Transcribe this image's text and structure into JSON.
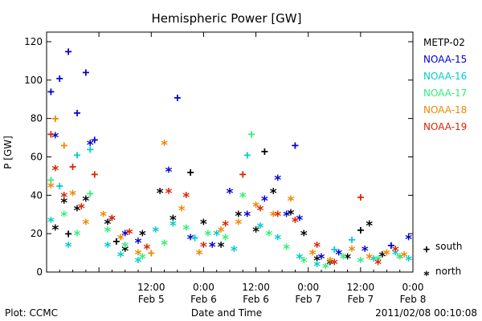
{
  "chart_data": {
    "type": "scatter",
    "title": "Hemispheric Power [GW]",
    "xlabel": "Date and Time",
    "ylabel": "P [GW]",
    "xlim": [
      "2011-02-04T12:00",
      "2011-02-08T00:00"
    ],
    "ylim": [
      0,
      125
    ],
    "y_ticks": [
      0,
      20,
      40,
      60,
      80,
      100,
      120
    ],
    "x_ticks": [
      {
        "t": "2011-02-05T00:00",
        "time": "",
        "date": ""
      },
      {
        "t": "2011-02-05T12:00",
        "time": "12:00",
        "date": "Feb 5"
      },
      {
        "t": "2011-02-06T00:00",
        "time": "0:00",
        "date": "Feb 6"
      },
      {
        "t": "2011-02-06T12:00",
        "time": "12:00",
        "date": "Feb 6"
      },
      {
        "t": "2011-02-07T00:00",
        "time": "0:00",
        "date": "Feb 7"
      },
      {
        "t": "2011-02-07T12:00",
        "time": "12:00",
        "date": "Feb 7"
      },
      {
        "t": "2011-02-08T00:00",
        "time": "0:00",
        "date": "Feb 8"
      }
    ],
    "grid": false,
    "legend_position": "right",
    "marker_legend": [
      {
        "symbol": "+",
        "label": "south"
      },
      {
        "symbol": "*",
        "label": "north"
      }
    ],
    "series": [
      {
        "name": "METP-02",
        "color": "#000000",
        "points": [
          {
            "t": "2011-02-04T14:00",
            "y": 23,
            "m": "*"
          },
          {
            "t": "2011-02-04T16:00",
            "y": 37,
            "m": "*"
          },
          {
            "t": "2011-02-04T17:00",
            "y": 20,
            "m": "+"
          },
          {
            "t": "2011-02-04T19:00",
            "y": 33,
            "m": "*"
          },
          {
            "t": "2011-02-04T21:00",
            "y": 38,
            "m": "*"
          },
          {
            "t": "2011-02-05T02:00",
            "y": 26,
            "m": "*"
          },
          {
            "t": "2011-02-05T04:00",
            "y": 16,
            "m": "+"
          },
          {
            "t": "2011-02-05T06:00",
            "y": 12,
            "m": "*"
          },
          {
            "t": "2011-02-05T10:00",
            "y": 20,
            "m": "*"
          },
          {
            "t": "2011-02-05T14:00",
            "y": 42,
            "m": "*"
          },
          {
            "t": "2011-02-05T17:00",
            "y": 28,
            "m": "*"
          },
          {
            "t": "2011-02-05T21:00",
            "y": 52,
            "m": "+"
          },
          {
            "t": "2011-02-06T00:00",
            "y": 26,
            "m": "*"
          },
          {
            "t": "2011-02-06T04:00",
            "y": 14,
            "m": "*"
          },
          {
            "t": "2011-02-06T08:00",
            "y": 30,
            "m": "*"
          },
          {
            "t": "2011-02-06T12:00",
            "y": 22,
            "m": "*"
          },
          {
            "t": "2011-02-06T14:00",
            "y": 63,
            "m": "+"
          },
          {
            "t": "2011-02-06T16:00",
            "y": 42,
            "m": "*"
          },
          {
            "t": "2011-02-06T20:00",
            "y": 31,
            "m": "*"
          },
          {
            "t": "2011-02-06T23:00",
            "y": 20,
            "m": "*"
          },
          {
            "t": "2011-02-07T02:00",
            "y": 7,
            "m": "*"
          },
          {
            "t": "2011-02-07T05:00",
            "y": 5,
            "m": "*"
          },
          {
            "t": "2011-02-07T09:00",
            "y": 8,
            "m": "*"
          },
          {
            "t": "2011-02-07T12:00",
            "y": 22,
            "m": "+"
          },
          {
            "t": "2011-02-07T14:00",
            "y": 25,
            "m": "*"
          },
          {
            "t": "2011-02-07T17:00",
            "y": 9,
            "m": "*"
          },
          {
            "t": "2011-02-07T21:00",
            "y": 8,
            "m": "*"
          }
        ]
      },
      {
        "name": "NOAA-15",
        "color": "#0000cc",
        "points": [
          {
            "t": "2011-02-04T13:00",
            "y": 94,
            "m": "+"
          },
          {
            "t": "2011-02-04T14:00",
            "y": 71,
            "m": "*"
          },
          {
            "t": "2011-02-04T15:00",
            "y": 101,
            "m": "+"
          },
          {
            "t": "2011-02-04T17:00",
            "y": 115,
            "m": "+"
          },
          {
            "t": "2011-02-04T19:00",
            "y": 83,
            "m": "+"
          },
          {
            "t": "2011-02-04T21:00",
            "y": 104,
            "m": "+"
          },
          {
            "t": "2011-02-04T22:00",
            "y": 67,
            "m": "*"
          },
          {
            "t": "2011-02-04T23:00",
            "y": 69,
            "m": "+"
          },
          {
            "t": "2011-02-05T03:00",
            "y": 28,
            "m": "*"
          },
          {
            "t": "2011-02-05T06:00",
            "y": 20,
            "m": "*"
          },
          {
            "t": "2011-02-05T09:00",
            "y": 16,
            "m": "*"
          },
          {
            "t": "2011-02-05T16:00",
            "y": 53,
            "m": "*"
          },
          {
            "t": "2011-02-05T18:00",
            "y": 91,
            "m": "+"
          },
          {
            "t": "2011-02-05T21:00",
            "y": 18,
            "m": "*"
          },
          {
            "t": "2011-02-06T02:00",
            "y": 14,
            "m": "*"
          },
          {
            "t": "2011-02-06T06:00",
            "y": 42,
            "m": "*"
          },
          {
            "t": "2011-02-06T10:00",
            "y": 30,
            "m": "*"
          },
          {
            "t": "2011-02-06T14:00",
            "y": 38,
            "m": "*"
          },
          {
            "t": "2011-02-06T17:00",
            "y": 49,
            "m": "*"
          },
          {
            "t": "2011-02-06T19:00",
            "y": 30,
            "m": "*"
          },
          {
            "t": "2011-02-06T21:00",
            "y": 66,
            "m": "+"
          },
          {
            "t": "2011-02-06T22:00",
            "y": 28,
            "m": "*"
          },
          {
            "t": "2011-02-07T03:00",
            "y": 8,
            "m": "*"
          },
          {
            "t": "2011-02-07T07:00",
            "y": 10,
            "m": "*"
          },
          {
            "t": "2011-02-07T13:00",
            "y": 12,
            "m": "*"
          },
          {
            "t": "2011-02-07T19:00",
            "y": 14,
            "m": "+"
          },
          {
            "t": "2011-02-07T23:00",
            "y": 18,
            "m": "*"
          }
        ]
      },
      {
        "name": "NOAA-16",
        "color": "#00cccc",
        "points": [
          {
            "t": "2011-02-04T13:00",
            "y": 27,
            "m": "*"
          },
          {
            "t": "2011-02-04T15:00",
            "y": 45,
            "m": "+"
          },
          {
            "t": "2011-02-04T17:00",
            "y": 14,
            "m": "*"
          },
          {
            "t": "2011-02-04T19:00",
            "y": 61,
            "m": "+"
          },
          {
            "t": "2011-02-04T22:00",
            "y": 64,
            "m": "+"
          },
          {
            "t": "2011-02-05T02:00",
            "y": 14,
            "m": "*"
          },
          {
            "t": "2011-02-05T05:00",
            "y": 9,
            "m": "*"
          },
          {
            "t": "2011-02-05T09:00",
            "y": 6,
            "m": "*"
          },
          {
            "t": "2011-02-05T13:00",
            "y": 22,
            "m": "*"
          },
          {
            "t": "2011-02-05T17:00",
            "y": 25,
            "m": "*"
          },
          {
            "t": "2011-02-05T22:00",
            "y": 18,
            "m": "+"
          },
          {
            "t": "2011-02-06T03:00",
            "y": 20,
            "m": "*"
          },
          {
            "t": "2011-02-06T07:00",
            "y": 12,
            "m": "*"
          },
          {
            "t": "2011-02-06T10:00",
            "y": 61,
            "m": "+"
          },
          {
            "t": "2011-02-06T13:00",
            "y": 24,
            "m": "*"
          },
          {
            "t": "2011-02-06T17:00",
            "y": 18,
            "m": "*"
          },
          {
            "t": "2011-02-06T22:00",
            "y": 8,
            "m": "*"
          },
          {
            "t": "2011-02-07T02:00",
            "y": 4,
            "m": "*"
          },
          {
            "t": "2011-02-07T06:00",
            "y": 12,
            "m": "+"
          },
          {
            "t": "2011-02-07T10:00",
            "y": 17,
            "m": "+"
          },
          {
            "t": "2011-02-07T15:00",
            "y": 7,
            "m": "*"
          },
          {
            "t": "2011-02-07T20:00",
            "y": 10,
            "m": "*"
          },
          {
            "t": "2011-02-07T23:00",
            "y": 7,
            "m": "*"
          }
        ]
      },
      {
        "name": "NOAA-17",
        "color": "#33ee77",
        "points": [
          {
            "t": "2011-02-04T13:00",
            "y": 48,
            "m": "+"
          },
          {
            "t": "2011-02-04T16:00",
            "y": 30,
            "m": "*"
          },
          {
            "t": "2011-02-04T19:00",
            "y": 20,
            "m": "*"
          },
          {
            "t": "2011-02-04T22:00",
            "y": 41,
            "m": "+"
          },
          {
            "t": "2011-02-05T02:00",
            "y": 22,
            "m": "*"
          },
          {
            "t": "2011-02-05T06:00",
            "y": 14,
            "m": "*"
          },
          {
            "t": "2011-02-05T10:00",
            "y": 8,
            "m": "*"
          },
          {
            "t": "2011-02-05T15:00",
            "y": 15,
            "m": "*"
          },
          {
            "t": "2011-02-05T20:00",
            "y": 23,
            "m": "*"
          },
          {
            "t": "2011-02-06T01:00",
            "y": 20,
            "m": "*"
          },
          {
            "t": "2011-02-06T05:00",
            "y": 18,
            "m": "*"
          },
          {
            "t": "2011-02-06T09:00",
            "y": 40,
            "m": "*"
          },
          {
            "t": "2011-02-06T11:00",
            "y": 72,
            "m": "+"
          },
          {
            "t": "2011-02-06T15:00",
            "y": 20,
            "m": "*"
          },
          {
            "t": "2011-02-06T19:00",
            "y": 13,
            "m": "*"
          },
          {
            "t": "2011-02-06T23:00",
            "y": 6,
            "m": "*"
          },
          {
            "t": "2011-02-07T04:00",
            "y": 3,
            "m": "*"
          },
          {
            "t": "2011-02-07T08:00",
            "y": 8,
            "m": "*"
          },
          {
            "t": "2011-02-07T12:00",
            "y": 6,
            "m": "*"
          },
          {
            "t": "2011-02-07T16:00",
            "y": 7,
            "m": "*"
          },
          {
            "t": "2011-02-07T21:00",
            "y": 8,
            "m": "*"
          }
        ]
      },
      {
        "name": "NOAA-18",
        "color": "#ee8800",
        "points": [
          {
            "t": "2011-02-04T13:00",
            "y": 45,
            "m": "*"
          },
          {
            "t": "2011-02-04T14:00",
            "y": 80,
            "m": "+"
          },
          {
            "t": "2011-02-04T16:00",
            "y": 66,
            "m": "+"
          },
          {
            "t": "2011-02-04T18:00",
            "y": 41,
            "m": "*"
          },
          {
            "t": "2011-02-04T21:00",
            "y": 26,
            "m": "*"
          },
          {
            "t": "2011-02-05T01:00",
            "y": 30,
            "m": "*"
          },
          {
            "t": "2011-02-05T05:00",
            "y": 18,
            "m": "*"
          },
          {
            "t": "2011-02-05T09:00",
            "y": 10,
            "m": "*"
          },
          {
            "t": "2011-02-05T12:00",
            "y": 10,
            "m": "+"
          },
          {
            "t": "2011-02-05T15:00",
            "y": 67,
            "m": "*"
          },
          {
            "t": "2011-02-05T19:00",
            "y": 33,
            "m": "*"
          },
          {
            "t": "2011-02-05T23:00",
            "y": 10,
            "m": "*"
          },
          {
            "t": "2011-02-06T04:00",
            "y": 22,
            "m": "*"
          },
          {
            "t": "2011-02-06T08:00",
            "y": 26,
            "m": "*"
          },
          {
            "t": "2011-02-06T12:00",
            "y": 35,
            "m": "*"
          },
          {
            "t": "2011-02-06T16:00",
            "y": 30,
            "m": "*"
          },
          {
            "t": "2011-02-06T20:00",
            "y": 38,
            "m": "*"
          },
          {
            "t": "2011-02-07T01:00",
            "y": 10,
            "m": "*"
          },
          {
            "t": "2011-02-07T05:00",
            "y": 6,
            "m": "*"
          },
          {
            "t": "2011-02-07T10:00",
            "y": 12,
            "m": "*"
          },
          {
            "t": "2011-02-07T14:00",
            "y": 8,
            "m": "*"
          },
          {
            "t": "2011-02-07T18:00",
            "y": 10,
            "m": "*"
          },
          {
            "t": "2011-02-07T22:00",
            "y": 9,
            "m": "*"
          }
        ]
      },
      {
        "name": "NOAA-19",
        "color": "#dd2200",
        "points": [
          {
            "t": "2011-02-04T13:00",
            "y": 72,
            "m": "+"
          },
          {
            "t": "2011-02-04T14:00",
            "y": 54,
            "m": "*"
          },
          {
            "t": "2011-02-04T16:00",
            "y": 40,
            "m": "*"
          },
          {
            "t": "2011-02-04T18:00",
            "y": 55,
            "m": "+"
          },
          {
            "t": "2011-02-04T20:00",
            "y": 34,
            "m": "*"
          },
          {
            "t": "2011-02-04T23:00",
            "y": 51,
            "m": "+"
          },
          {
            "t": "2011-02-05T03:00",
            "y": 28,
            "m": "*"
          },
          {
            "t": "2011-02-05T07:00",
            "y": 21,
            "m": "*"
          },
          {
            "t": "2011-02-05T11:00",
            "y": 13,
            "m": "*"
          },
          {
            "t": "2011-02-05T16:00",
            "y": 42,
            "m": "*"
          },
          {
            "t": "2011-02-05T20:00",
            "y": 40,
            "m": "*"
          },
          {
            "t": "2011-02-06T00:00",
            "y": 14,
            "m": "*"
          },
          {
            "t": "2011-02-06T05:00",
            "y": 25,
            "m": "*"
          },
          {
            "t": "2011-02-06T09:00",
            "y": 51,
            "m": "+"
          },
          {
            "t": "2011-02-06T13:00",
            "y": 33,
            "m": "*"
          },
          {
            "t": "2011-02-06T17:00",
            "y": 30,
            "m": "*"
          },
          {
            "t": "2011-02-06T21:00",
            "y": 27,
            "m": "*"
          },
          {
            "t": "2011-02-07T02:00",
            "y": 14,
            "m": "*"
          },
          {
            "t": "2011-02-07T06:00",
            "y": 5,
            "m": "*"
          },
          {
            "t": "2011-02-07T12:00",
            "y": 39,
            "m": "+"
          },
          {
            "t": "2011-02-07T16:00",
            "y": 5,
            "m": "*"
          },
          {
            "t": "2011-02-07T20:00",
            "y": 12,
            "m": "*"
          }
        ]
      }
    ]
  },
  "footer": {
    "plot_credit": "Plot: CCMC",
    "timestamp": "2011/02/08 00:10:08"
  }
}
